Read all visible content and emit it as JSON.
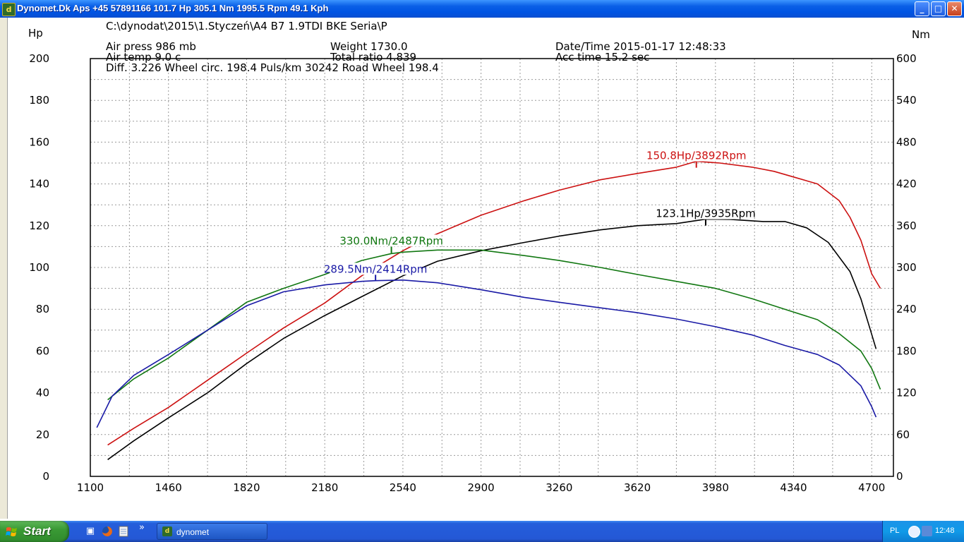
{
  "window": {
    "title": "Dynomet.Dk Aps +45 57891166  101.7 Hp 305.1 Nm 1995.5 Rpm 49.1 Kph",
    "app_icon": "dynomet-app-icon",
    "minimize_glyph": "_",
    "maximize_glyph": "□",
    "close_glyph": "✕"
  },
  "header": {
    "path": "C:\\dynodat\\2015\\1.Styczeń\\A4 B7 1.9TDI BKE Seria\\P",
    "air_press": "Air press   986 mb",
    "air_temp": "Air temp   9.0 c",
    "diff": "Diff.     3.226   Wheel circ. 198.4   Puls/km   30242   Road Wheel 198.4",
    "weight": "Weight   1730.0",
    "total_ratio": "Total ratio 4.839",
    "datetime": "Date/Time  2015-01-17 12:48:33",
    "acc_time": "Acc time   15.2 sec"
  },
  "chart_data": {
    "type": "line",
    "x_range": [
      1100,
      4800
    ],
    "x_ticks": [
      "1100",
      "1460",
      "1820",
      "2180",
      "2540",
      "2900",
      "3260",
      "3620",
      "3980",
      "4340",
      "4700"
    ],
    "left_axis": {
      "label": "Hp",
      "range": [
        0,
        200
      ],
      "ticks": [
        "0",
        "20",
        "40",
        "60",
        "80",
        "100",
        "120",
        "140",
        "160",
        "180",
        "200"
      ]
    },
    "right_axis": {
      "label": "Nm",
      "range": [
        0,
        600
      ],
      "ticks": [
        "0",
        "60",
        "120",
        "180",
        "240",
        "300",
        "360",
        "420",
        "480",
        "540",
        "600"
      ]
    },
    "grid": true,
    "series": [
      {
        "color": "#cc1111",
        "axis": "left",
        "x": [
          1180,
          1300,
          1460,
          1640,
          1820,
          1990,
          2180,
          2350,
          2540,
          2650,
          2900,
          3100,
          3260,
          3450,
          3620,
          3800,
          3892,
          4000,
          4150,
          4250,
          4350,
          4450,
          4550,
          4600,
          4650,
          4700,
          4740
        ],
        "y": [
          15,
          23,
          33,
          46,
          59,
          71,
          83,
          96,
          108,
          114,
          125,
          132,
          137,
          142,
          145,
          148,
          150.8,
          150,
          148,
          146,
          143,
          140,
          132,
          124,
          113,
          97,
          90
        ]
      },
      {
        "color": "#000000",
        "axis": "left",
        "x": [
          1180,
          1300,
          1460,
          1640,
          1820,
          1990,
          2180,
          2350,
          2540,
          2700,
          2900,
          3100,
          3260,
          3450,
          3620,
          3800,
          3935,
          4050,
          4200,
          4300,
          4400,
          4500,
          4600,
          4650,
          4700,
          4720
        ],
        "y": [
          8,
          17,
          28,
          40,
          54,
          66,
          77,
          86,
          96,
          103,
          108,
          112,
          115,
          118,
          120,
          121,
          123.1,
          123,
          122,
          122,
          119,
          112,
          98,
          85,
          68,
          61
        ]
      },
      {
        "color": "#117711",
        "axis": "right",
        "x": [
          1180,
          1300,
          1460,
          1640,
          1820,
          1990,
          2180,
          2350,
          2487,
          2540,
          2700,
          2900,
          3100,
          3260,
          3450,
          3620,
          3800,
          3980,
          4150,
          4300,
          4450,
          4550,
          4650,
          4700,
          4740
        ],
        "y": [
          110,
          140,
          170,
          210,
          250,
          270,
          290,
          310,
          320,
          322,
          325,
          325,
          317,
          310,
          300,
          290,
          280,
          270,
          255,
          240,
          225,
          205,
          180,
          155,
          125
        ]
      },
      {
        "color": "#1a1aa6",
        "axis": "right",
        "x": [
          1130,
          1200,
          1300,
          1460,
          1640,
          1820,
          1990,
          2180,
          2350,
          2414,
          2540,
          2700,
          2900,
          3100,
          3260,
          3450,
          3620,
          3800,
          3980,
          4150,
          4300,
          4450,
          4550,
          4650,
          4700,
          4720
        ],
        "y": [
          70,
          115,
          145,
          175,
          210,
          245,
          265,
          275,
          280,
          281,
          282,
          278,
          268,
          257,
          250,
          242,
          235,
          226,
          215,
          203,
          188,
          175,
          160,
          130,
          100,
          85
        ]
      }
    ],
    "annotations": [
      {
        "text": "150.8Hp/3892Rpm",
        "color": "#cc1111",
        "axis": "left",
        "x": 3892,
        "y": 150.8
      },
      {
        "text": "123.1Hp/3935Rpm",
        "color": "#000000",
        "axis": "left",
        "x": 3935,
        "y": 123.1
      },
      {
        "text": "330.0Nm/2487Rpm",
        "color": "#117711",
        "axis": "right",
        "x": 2487,
        "y": 330
      },
      {
        "text": "289.5Nm/2414Rpm",
        "color": "#1a1aa6",
        "axis": "right",
        "x": 2414,
        "y": 289.5
      }
    ]
  },
  "taskbar": {
    "start_label": "Start",
    "quick_launch": [
      "show-desktop-icon",
      "firefox-icon",
      "notepad-icon"
    ],
    "quick_launch_more": "»",
    "task_button_label": "dynomet",
    "tray_lang": "PL",
    "clock": "12:48"
  }
}
